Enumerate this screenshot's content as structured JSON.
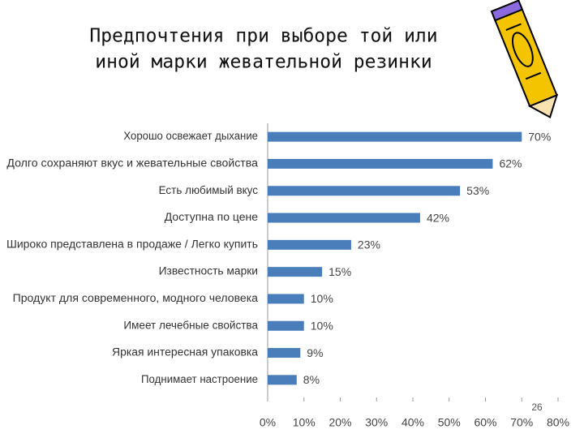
{
  "chart_data": {
    "type": "hbar",
    "title": [
      "Предпочтения при выборе той или",
      "иной марки жевательной резинки"
    ],
    "categories": [
      "Хорошо освежает дыхание",
      "Долго сохраняют вкус и жевательные свойства",
      "Есть любимый вкус",
      "Доступна по цене",
      "Широко представлена в продаже / Легко купить",
      "Известность марки",
      "Продукт для современного, модного человека",
      "Имеет лечебные свойства",
      "Яркая интересная упаковка",
      "Поднимает настроение"
    ],
    "values": [
      70,
      62,
      53,
      42,
      23,
      15,
      10,
      10,
      9,
      8
    ],
    "value_labels": [
      "70%",
      "62%",
      "53%",
      "42%",
      "23%",
      "15%",
      "10%",
      "10%",
      "9%",
      "8%"
    ],
    "color": "#4a7ebb",
    "xlim": [
      0,
      80
    ],
    "xticks": [
      {
        "value": 0,
        "label": "0%"
      },
      {
        "value": 10,
        "label": "10%"
      },
      {
        "value": 20,
        "label": "20%"
      },
      {
        "value": 30,
        "label": "30%"
      },
      {
        "value": 40,
        "label": "40%"
      },
      {
        "value": 50,
        "label": "50%"
      },
      {
        "value": 60,
        "label": "60%"
      },
      {
        "value": 70,
        "label": "70%"
      },
      {
        "value": 80,
        "label": "80%"
      }
    ],
    "grid": false
  },
  "slide_number": "26"
}
